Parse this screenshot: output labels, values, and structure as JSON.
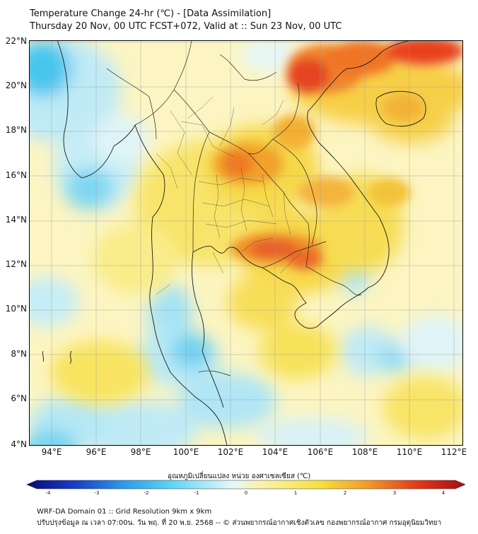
{
  "title": {
    "line1": "Temperature Change 24-hr (℃) - [Data Assimilation]",
    "line2": "Thursday 20 Nov, 00 UTC FCST+072, Valid at :: Sun 23 Nov, 00 UTC"
  },
  "lat_labels": [
    "22°N",
    "20°N",
    "18°N",
    "16°N",
    "14°N",
    "12°N",
    "10°N",
    "8°N",
    "6°N",
    "4°N"
  ],
  "lon_labels": [
    "94°E",
    "96°E",
    "98°E",
    "100°E",
    "102°E",
    "104°E",
    "106°E",
    "108°E",
    "110°E",
    "112°E"
  ],
  "map_extent": {
    "lon_min": 93,
    "lon_max": 112.4,
    "lat_min": 4,
    "lat_max": 22.2
  },
  "colorbar": {
    "title": "อุณหภูมิเปลี่ยนแปลง หน่วย องศาเซลเซียส (℃)",
    "range": [
      -4,
      4
    ],
    "ticks": [
      "-4",
      "-3",
      "-2",
      "-1",
      "0",
      "1",
      "2",
      "3",
      "4"
    ],
    "colors": [
      "#0a0a78",
      "#1a3ec8",
      "#2d9bea",
      "#5fd6f6",
      "#e6f7fb",
      "#fbf2b0",
      "#f6e23c",
      "#f39a26",
      "#e33a1c",
      "#a40d12"
    ]
  },
  "footer": {
    "line1": "WRF-DA Domain 01 :: Grid Resolution 9km x 9km",
    "line2": "ปรับปรุงข้อมูล ณ เวลา 07:00น. วัน พฤ. ที่ 20 พ.ย. 2568 -- © ส่วนพยากรณ์อากาศเชิงตัวเลข กองพยากรณ์อากาศ กรมอุตุนิยมวิทยา"
  }
}
